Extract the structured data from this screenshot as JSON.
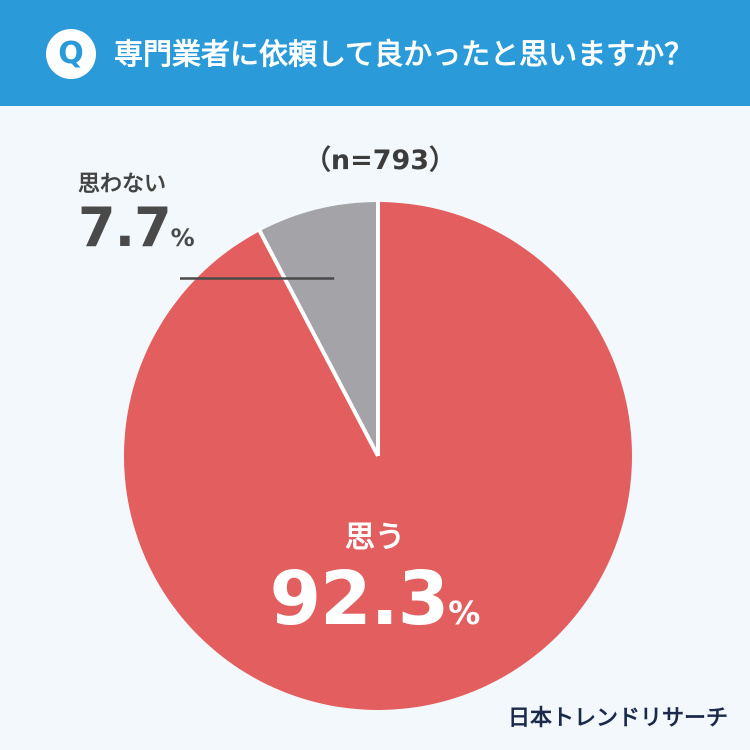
{
  "header": {
    "badge": "Q",
    "title": "専門業者に依頼して良かったと思いますか？"
  },
  "chart_data": {
    "type": "pie",
    "sample_size": "（n=793）",
    "slices": [
      {
        "label": "思う",
        "value": 92.3,
        "value_text": "92.3",
        "unit": "%",
        "color": "#e35f5f"
      },
      {
        "label": "思わない",
        "value": 7.7,
        "value_text": "7.7",
        "unit": "%",
        "color": "#a3a3a8"
      }
    ],
    "start": "12 o'clock",
    "direction": "clockwise"
  },
  "brand": {
    "logo_text": "日本トレンドリサーチ"
  },
  "colors": {
    "header_bg": "#2a9ad8",
    "background": "#f2f8fb",
    "divider": "#ffffff"
  }
}
